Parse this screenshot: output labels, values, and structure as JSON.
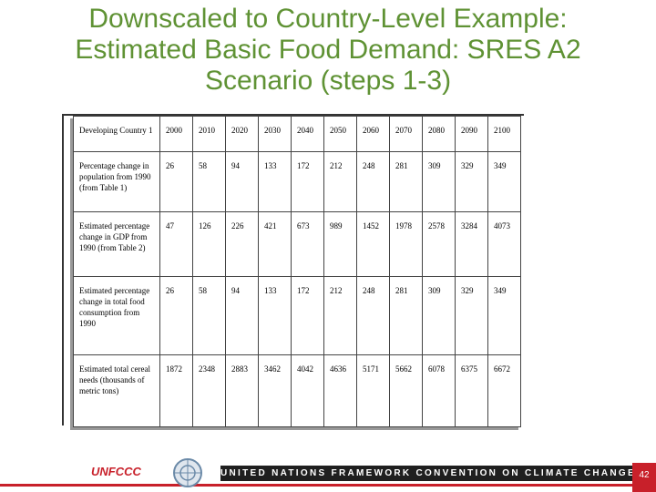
{
  "title": [
    "Downscaled to Country-Level Example:",
    "Estimated Basic Food Demand: SRES A2",
    "Scenario (steps 1-3)"
  ],
  "table": {
    "header": [
      "Developing Country 1",
      2000,
      2010,
      2020,
      2030,
      2040,
      2050,
      2060,
      2070,
      2080,
      2090,
      2100
    ],
    "rows": [
      [
        "Percentage change in population from 1990 (from Table 1)",
        26,
        58,
        94,
        133,
        172,
        212,
        248,
        281,
        309,
        329,
        349
      ],
      [
        "Estimated percentage change in GDP from 1990 (from Table 2)",
        47,
        126,
        226,
        421,
        673,
        989,
        1452,
        1978,
        2578,
        3284,
        4073
      ],
      [
        "Estimated percentage change in total food consumption from 1990",
        26,
        58,
        94,
        133,
        172,
        212,
        248,
        281,
        309,
        329,
        349
      ],
      [
        "Estimated total cereal needs (thousands of metric tons)",
        1872,
        2348,
        2883,
        3462,
        4042,
        4636,
        5171,
        5662,
        6078,
        6375,
        6672
      ]
    ]
  },
  "footer": {
    "logo": "UNFCCC",
    "banner": "UNITED NATIONS FRAMEWORK CONVENTION ON CLIMATE CHANGE",
    "page": 42
  }
}
